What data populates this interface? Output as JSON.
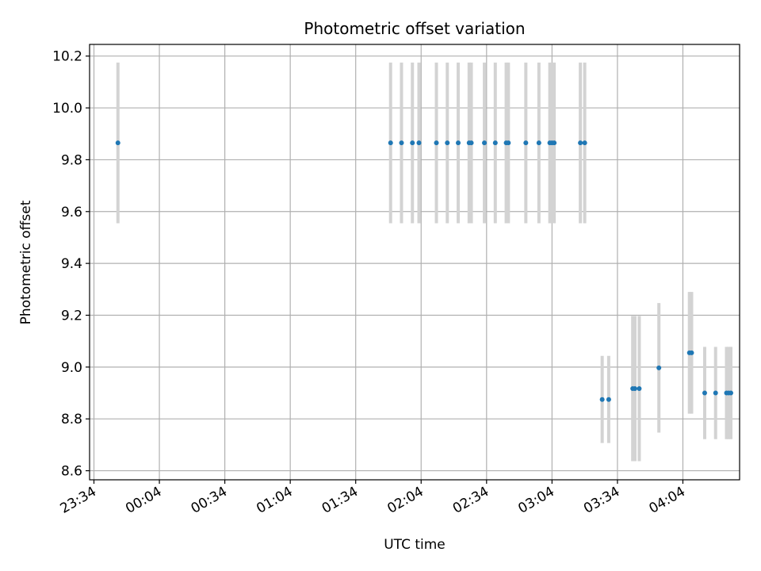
{
  "chart_data": {
    "type": "scatter",
    "title": "Photometric offset variation",
    "xlabel": "UTC time",
    "ylabel": "Photometric offset",
    "xlim": [
      "23:32",
      "04:30"
    ],
    "ylim": [
      8.565,
      10.245
    ],
    "xticks": [
      "23:34",
      "00:04",
      "00:34",
      "01:04",
      "01:34",
      "02:04",
      "02:34",
      "03:04",
      "03:34",
      "04:04"
    ],
    "yticks": [
      "8.6",
      "8.8",
      "9.0",
      "9.2",
      "9.4",
      "9.6",
      "9.8",
      "10.0",
      "10.2"
    ],
    "grid": true,
    "colors": {
      "point": "#1f77b4",
      "errorbar": "#d3d3d3",
      "grid": "#b0b0b0"
    },
    "points": [
      {
        "t": "23:45",
        "y": 9.865,
        "err": 0.31
      },
      {
        "t": "01:50",
        "y": 9.865,
        "err": 0.31
      },
      {
        "t": "01:55",
        "y": 9.865,
        "err": 0.31
      },
      {
        "t": "02:00",
        "y": 9.865,
        "err": 0.31
      },
      {
        "t": "02:03",
        "y": 9.865,
        "err": 0.31
      },
      {
        "t": "02:11",
        "y": 9.865,
        "err": 0.31
      },
      {
        "t": "02:16",
        "y": 9.865,
        "err": 0.31
      },
      {
        "t": "02:21",
        "y": 9.865,
        "err": 0.31
      },
      {
        "t": "02:26",
        "y": 9.865,
        "err": 0.31
      },
      {
        "t": "02:27",
        "y": 9.865,
        "err": 0.31
      },
      {
        "t": "02:33",
        "y": 9.865,
        "err": 0.31
      },
      {
        "t": "02:38",
        "y": 9.865,
        "err": 0.31
      },
      {
        "t": "02:43",
        "y": 9.865,
        "err": 0.31
      },
      {
        "t": "02:44",
        "y": 9.865,
        "err": 0.31
      },
      {
        "t": "02:52",
        "y": 9.865,
        "err": 0.31
      },
      {
        "t": "02:58",
        "y": 9.865,
        "err": 0.31
      },
      {
        "t": "03:03",
        "y": 9.865,
        "err": 0.31
      },
      {
        "t": "03:04",
        "y": 9.865,
        "err": 0.31
      },
      {
        "t": "03:05",
        "y": 9.865,
        "err": 0.31
      },
      {
        "t": "03:17",
        "y": 9.865,
        "err": 0.31
      },
      {
        "t": "03:19",
        "y": 9.865,
        "err": 0.31
      },
      {
        "t": "03:27",
        "y": 8.875,
        "err": 0.168
      },
      {
        "t": "03:30",
        "y": 8.875,
        "err": 0.168
      },
      {
        "t": "03:41",
        "y": 8.917,
        "err": 0.28
      },
      {
        "t": "03:42",
        "y": 8.917,
        "err": 0.28
      },
      {
        "t": "03:44",
        "y": 8.917,
        "err": 0.28
      },
      {
        "t": "03:53",
        "y": 8.997,
        "err": 0.25
      },
      {
        "t": "04:07",
        "y": 9.055,
        "err": 0.235
      },
      {
        "t": "04:08",
        "y": 9.055,
        "err": 0.235
      },
      {
        "t": "04:14",
        "y": 8.9,
        "err": 0.178
      },
      {
        "t": "04:19",
        "y": 8.9,
        "err": 0.178
      },
      {
        "t": "04:24",
        "y": 8.9,
        "err": 0.178
      },
      {
        "t": "04:25",
        "y": 8.9,
        "err": 0.178
      },
      {
        "t": "04:26",
        "y": 8.9,
        "err": 0.178
      }
    ]
  }
}
